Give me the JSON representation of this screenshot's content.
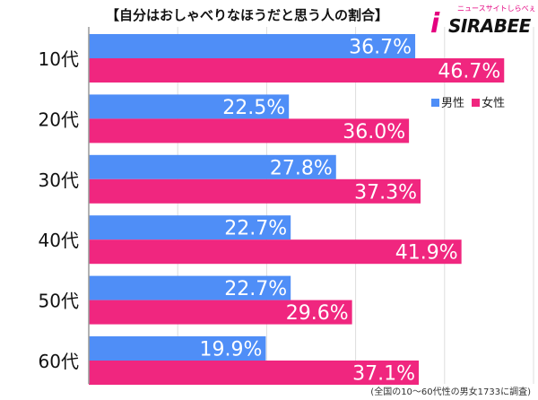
{
  "title": "【自分はおしゃべりなほうだと思う人の割合】",
  "logo": {
    "tagline": "ニュースサイトしらべぇ",
    "brand": "SIRABEE",
    "mark": "i"
  },
  "footnote": "(全国の10～60代性の男女1733に調査)",
  "colors": {
    "male": "#4f8ef7",
    "female": "#f0267f",
    "axis": "#999999",
    "grid": "#dddddd"
  },
  "chart_data": {
    "type": "bar",
    "orientation": "horizontal",
    "categories": [
      "10代",
      "20代",
      "30代",
      "40代",
      "50代",
      "60代"
    ],
    "series": [
      {
        "name": "男性",
        "values": [
          36.7,
          22.5,
          27.8,
          22.7,
          22.7,
          19.9
        ]
      },
      {
        "name": "女性",
        "values": [
          46.7,
          36.0,
          37.3,
          41.9,
          29.6,
          37.1
        ]
      }
    ],
    "value_labels": [
      [
        "36.7%",
        "22.5%",
        "27.8%",
        "22.7%",
        "22.7%",
        "19.9%"
      ],
      [
        "46.7%",
        "36.0%",
        "37.3%",
        "41.9%",
        "29.6%",
        "37.1%"
      ]
    ],
    "xlim": [
      0,
      50
    ],
    "grid": true,
    "legend_position": "right"
  }
}
